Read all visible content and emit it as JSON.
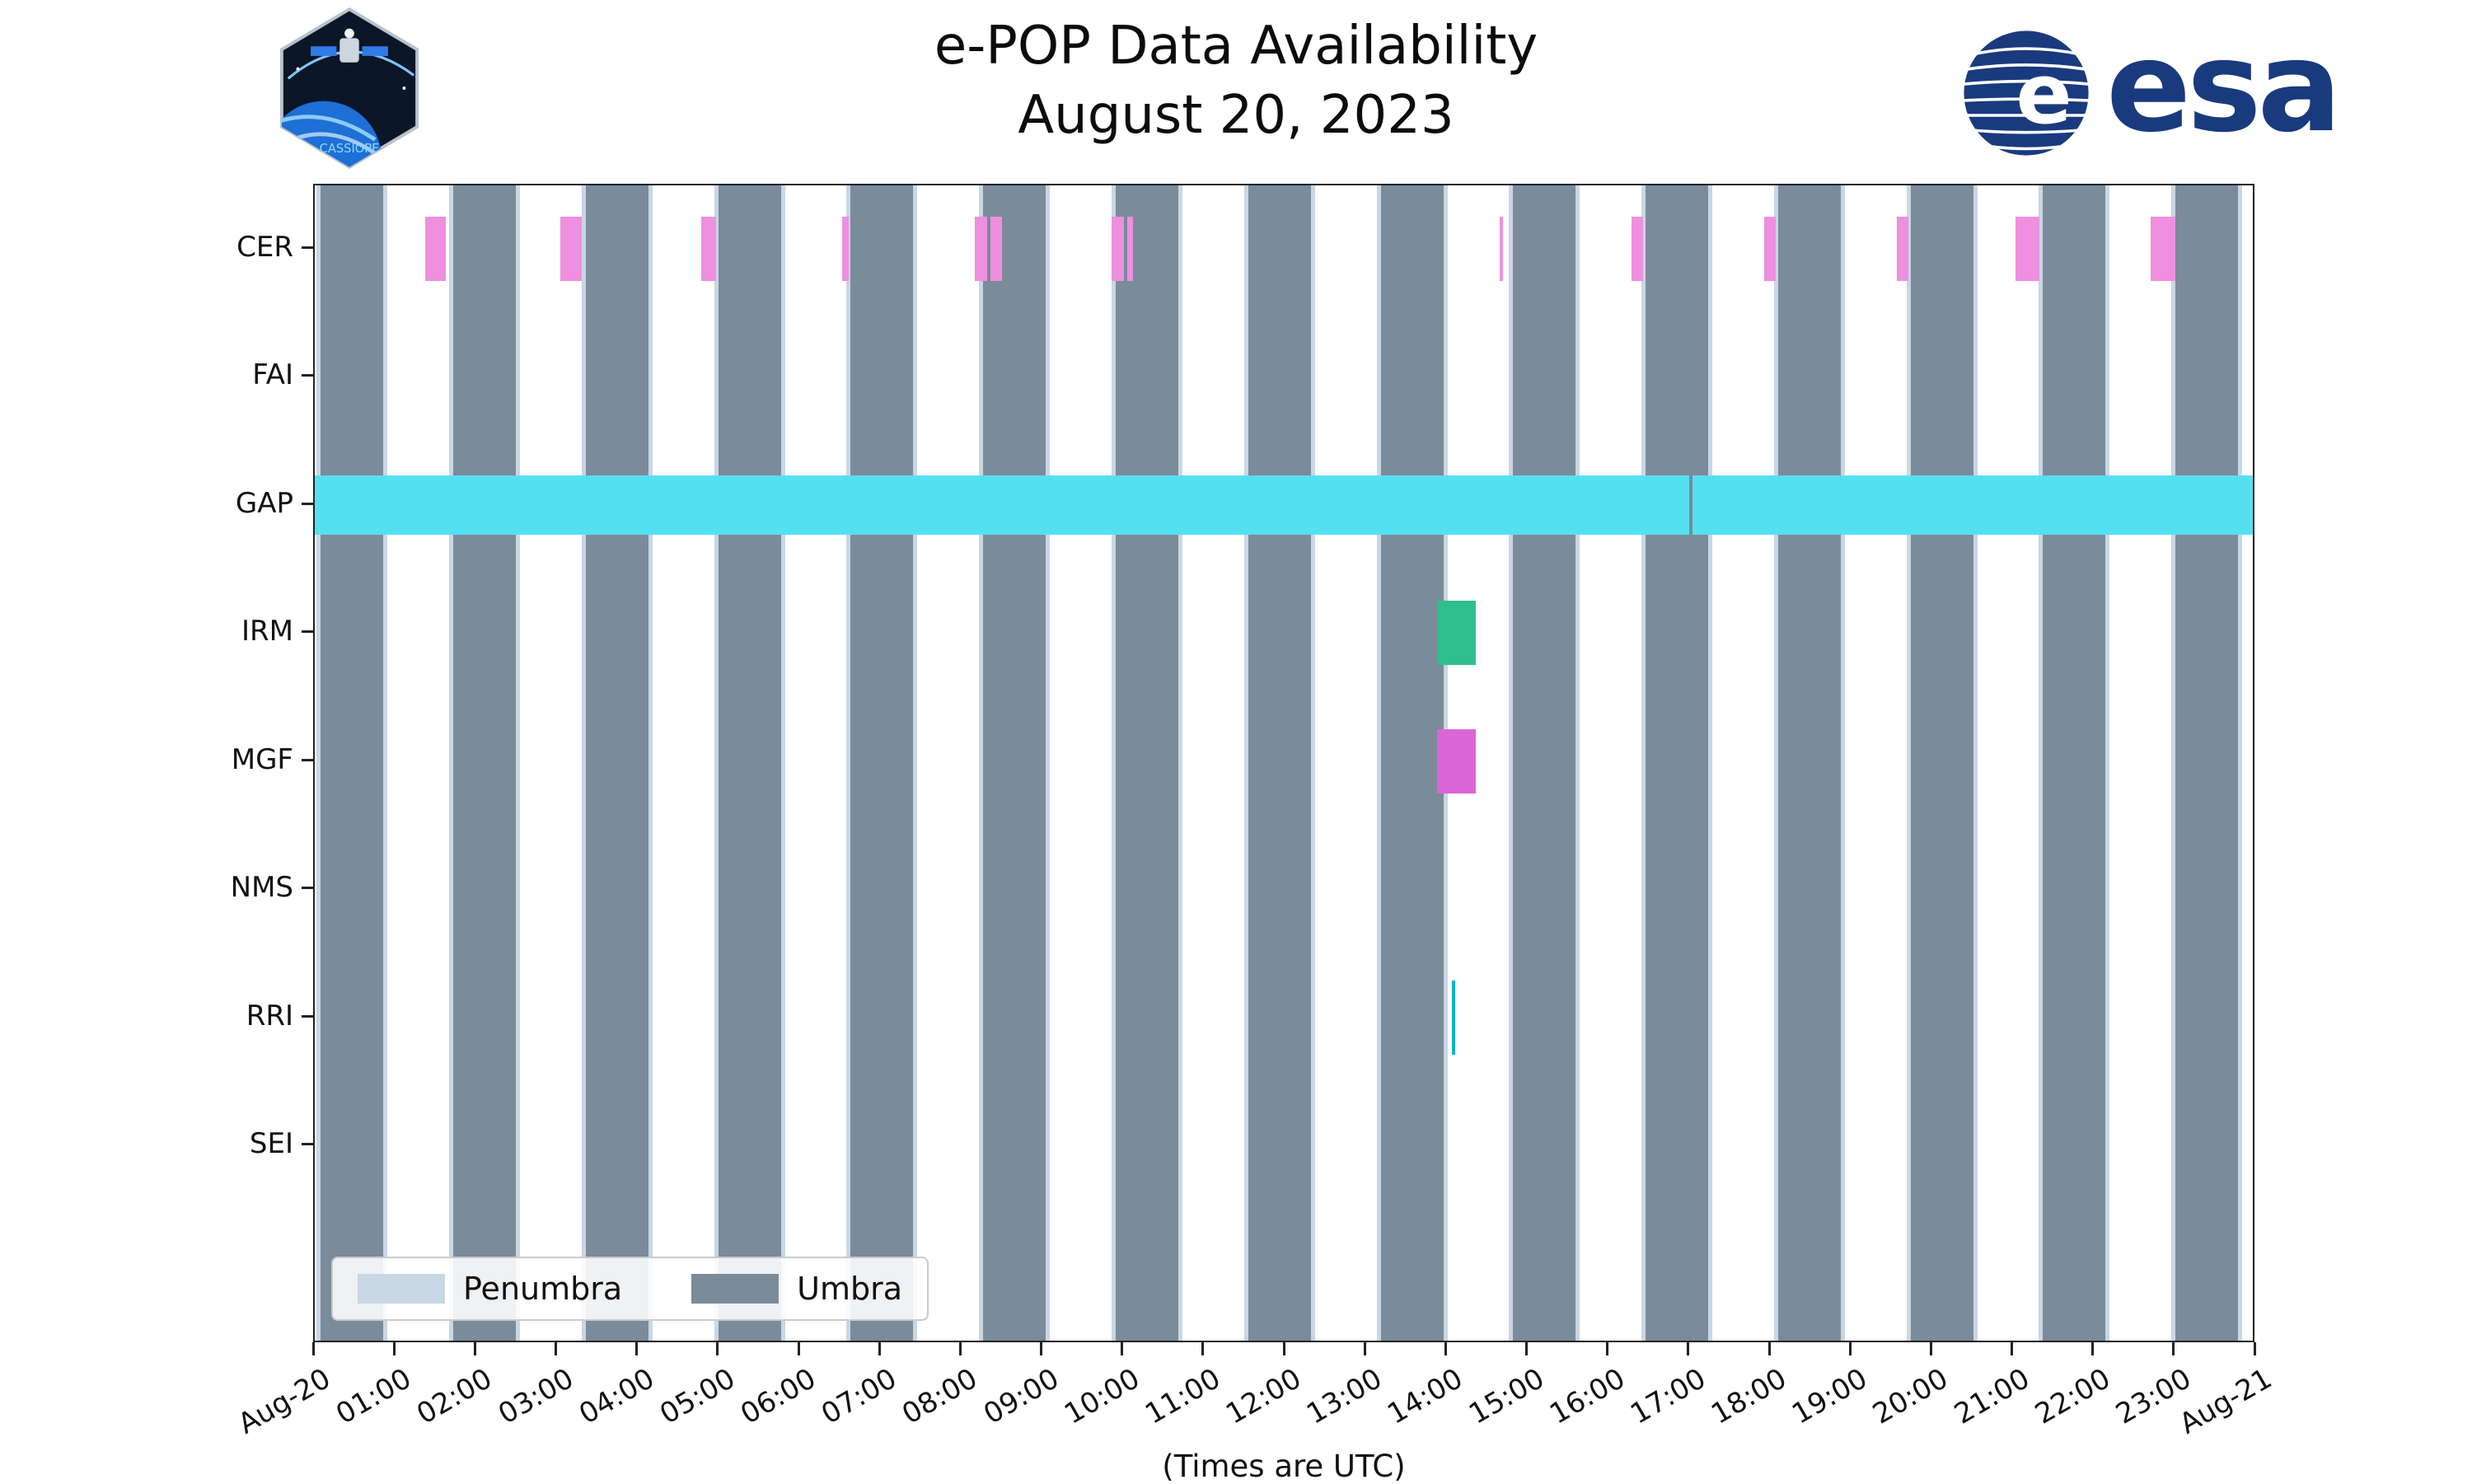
{
  "title": "e-POP Data Availability",
  "subtitle": "August 20, 2023",
  "xlabel": "(Times are UTC)",
  "legend": {
    "penumbra_label": "Penumbra",
    "umbra_label": "Umbra"
  },
  "logos": {
    "cassiope_text": "CASSIOPE",
    "esa_text": "esa",
    "esa_globe_letter": "e"
  },
  "colors": {
    "umbra": "#7a8b99",
    "penumbra": "#c9d6e4",
    "cer": "#ee8fdf",
    "gap": "#55e0f2",
    "irm": "#2fbf8e",
    "mgf": "#da66d6",
    "rri": "#00b4cf",
    "axis": "#222222",
    "esa_blue": "#1a3a7e"
  },
  "chart_data": {
    "type": "timeline",
    "title": "e-POP Data Availability",
    "subtitle": "August 20, 2023",
    "xlabel": "(Times are UTC)",
    "grid": false,
    "legend_entries": [
      "Penumbra",
      "Umbra"
    ],
    "legend_position": "lower left",
    "x_range_hours": [
      0,
      24
    ],
    "tick_hours": [
      0,
      1,
      2,
      3,
      4,
      5,
      6,
      7,
      8,
      9,
      10,
      11,
      12,
      13,
      14,
      15,
      16,
      17,
      18,
      19,
      20,
      21,
      22,
      23,
      24
    ],
    "tick_labels": [
      "Aug-20",
      "01:00",
      "02:00",
      "03:00",
      "04:00",
      "05:00",
      "06:00",
      "07:00",
      "08:00",
      "09:00",
      "10:00",
      "11:00",
      "12:00",
      "13:00",
      "14:00",
      "15:00",
      "16:00",
      "17:00",
      "18:00",
      "19:00",
      "20:00",
      "21:00",
      "22:00",
      "23:00",
      "Aug-21"
    ],
    "rows": [
      "CER",
      "FAI",
      "GAP",
      "IRM",
      "MGF",
      "NMS",
      "RRI",
      "SEI"
    ],
    "penumbra_pad_hours": 0.05,
    "umbra_intervals_hours": [
      [
        0.07,
        0.85
      ],
      [
        1.71,
        2.49
      ],
      [
        3.35,
        4.13
      ],
      [
        4.99,
        5.77
      ],
      [
        6.62,
        7.4
      ],
      [
        8.26,
        9.04
      ],
      [
        9.9,
        10.68
      ],
      [
        11.54,
        12.32
      ],
      [
        13.18,
        13.96
      ],
      [
        14.81,
        15.59
      ],
      [
        16.45,
        17.23
      ],
      [
        18.09,
        18.87
      ],
      [
        19.73,
        20.51
      ],
      [
        21.36,
        22.14
      ],
      [
        23.0,
        23.78
      ]
    ],
    "series": [
      {
        "row": "CER",
        "color_key": "cer",
        "intervals_hours": [
          [
            1.36,
            1.62
          ],
          [
            3.04,
            3.3
          ],
          [
            4.78,
            4.96
          ],
          [
            6.52,
            6.6
          ],
          [
            8.16,
            8.31
          ],
          [
            8.35,
            8.5
          ],
          [
            9.85,
            10.0
          ],
          [
            10.04,
            10.12
          ],
          [
            14.65,
            14.69
          ],
          [
            16.28,
            16.42
          ],
          [
            17.92,
            18.06
          ],
          [
            19.56,
            19.7
          ],
          [
            21.03,
            21.32
          ],
          [
            22.7,
            23.0
          ]
        ]
      },
      {
        "row": "GAP",
        "color_key": "gap",
        "intervals_hours": [
          [
            0.0,
            16.99
          ],
          [
            17.03,
            24.0
          ]
        ]
      },
      {
        "row": "IRM",
        "color_key": "irm",
        "intervals_hours": [
          [
            13.87,
            14.35
          ]
        ]
      },
      {
        "row": "MGF",
        "color_key": "mgf",
        "intervals_hours": [
          [
            13.87,
            14.35
          ]
        ]
      },
      {
        "row": "RRI",
        "color_key": "rri",
        "intervals_hours": [
          [
            14.06,
            14.1
          ]
        ]
      }
    ]
  }
}
